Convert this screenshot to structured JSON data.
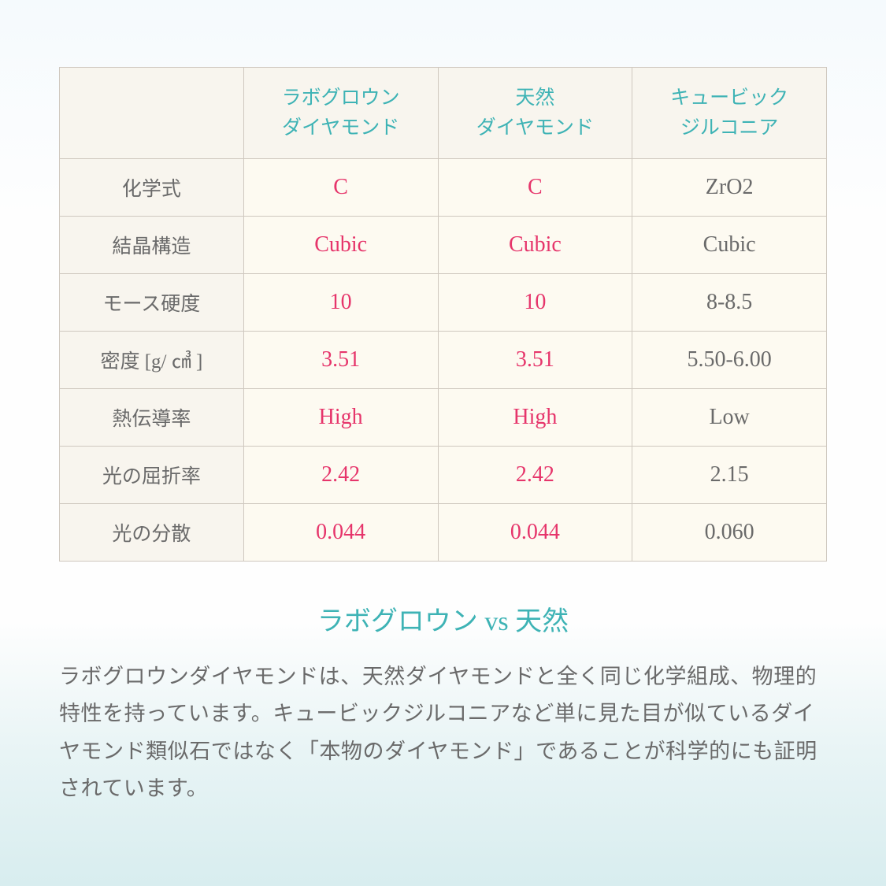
{
  "table": {
    "columns": [
      {
        "line1": "ラボグロウン",
        "line2": "ダイヤモンド",
        "color": "#3eb3b5"
      },
      {
        "line1": "天然",
        "line2": "ダイヤモンド",
        "color": "#3eb3b5"
      },
      {
        "line1": "キュービック",
        "line2": "ジルコニア",
        "color": "#3eb3b5"
      }
    ],
    "rows": [
      {
        "label": "化学式",
        "c1": "C",
        "c2": "C",
        "c3": "ZrO2",
        "c1_color": "pink",
        "c2_color": "pink",
        "c3_color": "gray"
      },
      {
        "label": "結晶構造",
        "c1": "Cubic",
        "c2": "Cubic",
        "c3": "Cubic",
        "c1_color": "pink",
        "c2_color": "pink",
        "c3_color": "gray"
      },
      {
        "label": "モース硬度",
        "c1": "10",
        "c2": "10",
        "c3": "8-8.5",
        "c1_color": "pink",
        "c2_color": "pink",
        "c3_color": "gray"
      },
      {
        "label": "密度 [g/ ㎤ ]",
        "c1": "3.51",
        "c2": "3.51",
        "c3": "5.50-6.00",
        "c1_color": "pink",
        "c2_color": "pink",
        "c3_color": "gray"
      },
      {
        "label": "熱伝導率",
        "c1": "High",
        "c2": "High",
        "c3": "Low",
        "c1_color": "pink",
        "c2_color": "pink",
        "c3_color": "gray"
      },
      {
        "label": "光の屈折率",
        "c1": "2.42",
        "c2": "2.42",
        "c3": "2.15",
        "c1_color": "pink",
        "c2_color": "pink",
        "c3_color": "gray"
      },
      {
        "label": "光の分散",
        "c1": "0.044",
        "c2": "0.044",
        "c3": "0.060",
        "c1_color": "pink",
        "c2_color": "pink",
        "c3_color": "gray"
      }
    ],
    "header_bg": "#f8f5ee",
    "cell_bg": "#fdfaf1",
    "border_color": "#cfc8bf",
    "pink": "#e6356b",
    "gray": "#6a6a6a",
    "teal": "#3eb3b5",
    "header_fontsize": 25,
    "cell_fontsize": 28
  },
  "section_title": "ラボグロウン vs 天然",
  "body_text": "ラボグロウンダイヤモンドは、天然ダイヤモンドと全く同じ化学組成、物理的特性を持っています。キュービックジルコニアなど単に見た目が似ているダイヤモンド類似石ではなく「本物のダイヤモンド」であることが科学的にも証明されています。",
  "background_gradient": [
    "#f5fafd",
    "#fefefe",
    "#e8f4f5",
    "#d8edef"
  ],
  "title_color": "#3eb3b5",
  "title_fontsize": 34,
  "body_color": "#6a6a6a",
  "body_fontsize": 27
}
